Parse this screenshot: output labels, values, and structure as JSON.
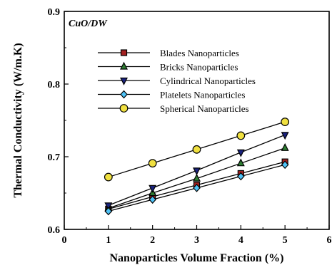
{
  "chart_data": {
    "type": "line",
    "annotation": "CuO/DW",
    "xlabel": "Nanoparticles Volume Fraction (%)",
    "ylabel": "Thermal Conductivity (W/m.K)",
    "xlim": [
      0,
      6
    ],
    "ylim": [
      0.6,
      0.9
    ],
    "xticks": [
      0,
      1,
      2,
      3,
      4,
      5,
      6
    ],
    "xtick_labels": [
      "0",
      "1",
      "2",
      "3",
      "4",
      "5",
      "6"
    ],
    "yticks": [
      0.6,
      0.7,
      0.8,
      0.9
    ],
    "ytick_labels": [
      "0.6",
      "0.7",
      "0.8",
      "0.9"
    ],
    "legend_position": "upper-left",
    "grid": false,
    "x": [
      1,
      2,
      3,
      4,
      5
    ],
    "series": [
      {
        "name": "Blades Nanoparticles",
        "values": [
          0.628,
          0.645,
          0.661,
          0.677,
          0.693
        ],
        "marker": "square",
        "marker_color": "#a32020"
      },
      {
        "name": "Bricks Nanoparticles",
        "values": [
          0.629,
          0.65,
          0.67,
          0.691,
          0.712
        ],
        "marker": "triangle-up",
        "marker_color": "#2e7d32"
      },
      {
        "name": "Cylindrical Nanoparticles",
        "values": [
          0.633,
          0.657,
          0.681,
          0.706,
          0.73
        ],
        "marker": "triangle-down",
        "marker_color": "#1a237e"
      },
      {
        "name": "Platelets Nanoparticles",
        "values": [
          0.625,
          0.641,
          0.657,
          0.673,
          0.689
        ],
        "marker": "diamond",
        "marker_color": "#4fc3f7"
      },
      {
        "name": "Spherical Nanoparticles",
        "values": [
          0.672,
          0.691,
          0.71,
          0.729,
          0.748
        ],
        "marker": "circle",
        "marker_color": "#f0e040"
      }
    ]
  }
}
